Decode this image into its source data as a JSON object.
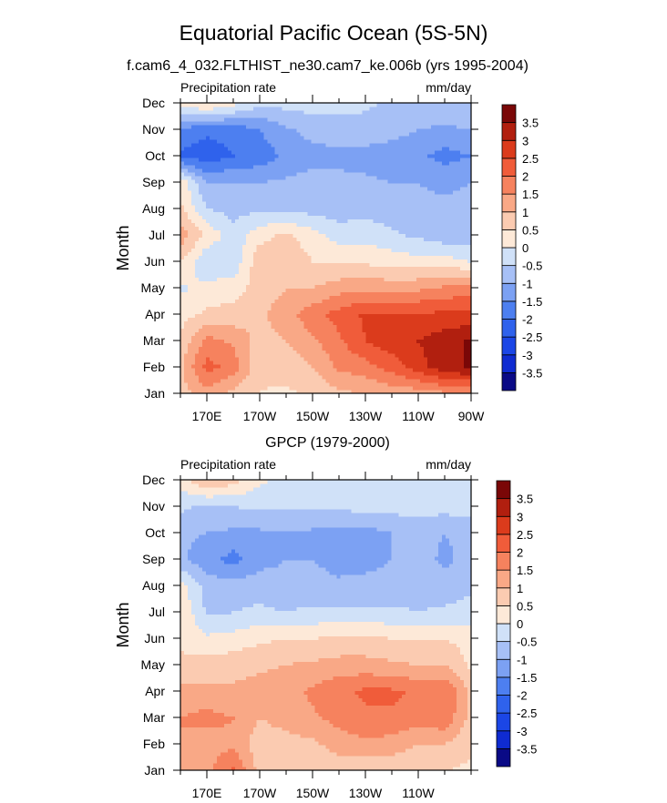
{
  "figure": {
    "title": "Equatorial Pacific Ocean (5S-5N)"
  },
  "colormap": [
    "#0a0a86",
    "#0f2bd1",
    "#1b46e6",
    "#2f62ec",
    "#4d7ff0",
    "#7ca1f3",
    "#a7c0f6",
    "#d0e1f8",
    "#fde9d8",
    "#fbcbb1",
    "#f9a886",
    "#f6825e",
    "#f05c3a",
    "#db3b1c",
    "#b11f0f",
    "#7a0707"
  ],
  "chart_data": [
    {
      "type": "heatmap",
      "title": "f.cam6_4_032.FLTHIST_ne30.cam7_ke.006b (yrs 1995-2004)",
      "left_label": "Precipitation rate",
      "right_label": "mm/day",
      "ylabel": "Month",
      "xlabel": "",
      "xlim": [
        160,
        270
      ],
      "ylim": [
        1,
        12
      ],
      "x_ticks": [
        {
          "value": 170,
          "label": "170E"
        },
        {
          "value": 190,
          "label": "170W"
        },
        {
          "value": 210,
          "label": "150W"
        },
        {
          "value": 230,
          "label": "130W"
        },
        {
          "value": 250,
          "label": "110W"
        },
        {
          "value": 270,
          "label": "90W"
        }
      ],
      "y_ticks": [
        "Jan",
        "Feb",
        "Mar",
        "Apr",
        "May",
        "Jun",
        "Jul",
        "Aug",
        "Sep",
        "Oct",
        "Nov",
        "Dec"
      ],
      "colorbar_labels": [
        "3.5",
        "3",
        "2.5",
        "2",
        "1.5",
        "1",
        "0.5",
        "0",
        "-0.5",
        "-1",
        "-1.5",
        "-2",
        "-2.5",
        "-3",
        "-3.5"
      ],
      "levels": [
        -3.5,
        -3,
        -2.5,
        -2,
        -1.5,
        -1,
        -0.5,
        0,
        0.5,
        1,
        1.5,
        2,
        2.5,
        3,
        3.5
      ],
      "grid_lon": [
        160,
        170,
        180,
        190,
        200,
        210,
        220,
        230,
        240,
        250,
        260,
        270
      ],
      "grid_month": [
        1,
        2,
        3,
        4,
        5,
        6,
        7,
        8,
        9,
        10,
        11,
        12
      ],
      "z": [
        [
          0.8,
          1.3,
          0.8,
          0.5,
          0.4,
          0.6,
          0.9,
          1.0,
          1.2,
          1.2,
          1.4,
          1.5
        ],
        [
          0.9,
          2.2,
          1.8,
          0.6,
          0.7,
          1.0,
          1.6,
          1.8,
          2.2,
          2.8,
          3.3,
          3.6
        ],
        [
          0.6,
          1.7,
          1.4,
          0.8,
          1.0,
          1.4,
          1.9,
          2.5,
          2.8,
          3.0,
          3.3,
          3.6
        ],
        [
          0.3,
          0.6,
          0.7,
          0.9,
          1.3,
          1.8,
          2.2,
          2.6,
          2.6,
          2.6,
          2.6,
          2.6
        ],
        [
          -0.1,
          0.2,
          0.3,
          0.7,
          1.0,
          1.0,
          1.3,
          1.4,
          1.3,
          1.4,
          1.6,
          1.8
        ],
        [
          0.5,
          -0.5,
          -0.4,
          0.9,
          0.9,
          0.5,
          0.4,
          0.4,
          0.3,
          0.2,
          0.2,
          0.0
        ],
        [
          1.3,
          0.4,
          -0.3,
          0.3,
          0.6,
          0.2,
          -0.2,
          -0.2,
          -0.4,
          -0.6,
          -0.8,
          -0.8
        ],
        [
          0.6,
          -0.5,
          -0.7,
          -0.6,
          -0.6,
          -0.7,
          -0.8,
          -0.7,
          -0.8,
          -0.9,
          -0.9,
          -0.8
        ],
        [
          0.4,
          -1.0,
          -1.0,
          -1.0,
          -0.9,
          -0.8,
          -0.9,
          -0.9,
          -1.0,
          -1.0,
          -1.1,
          -1.0
        ],
        [
          -2.1,
          -2.3,
          -2.0,
          -1.8,
          -1.4,
          -1.2,
          -1.1,
          -1.2,
          -1.3,
          -1.4,
          -1.7,
          -1.5
        ],
        [
          -1.6,
          -1.9,
          -1.8,
          -1.5,
          -1.1,
          -0.8,
          -0.8,
          -0.7,
          -0.8,
          -1.0,
          -1.1,
          -1.0
        ],
        [
          0.1,
          0.6,
          0.2,
          -0.4,
          -0.3,
          -0.3,
          -0.3,
          -0.4,
          -0.6,
          -0.5,
          -0.6,
          -0.5
        ]
      ]
    },
    {
      "type": "heatmap",
      "title": "GPCP (1979-2000)",
      "left_label": "Precipitation rate",
      "right_label": "mm/day",
      "ylabel": "Month",
      "xlabel": "",
      "xlim": [
        160,
        270
      ],
      "ylim": [
        1,
        12
      ],
      "x_ticks": [
        {
          "value": 170,
          "label": "170E"
        },
        {
          "value": 190,
          "label": "170W"
        },
        {
          "value": 210,
          "label": "150W"
        },
        {
          "value": 230,
          "label": "130W"
        },
        {
          "value": 250,
          "label": "110W"
        }
      ],
      "y_ticks": [
        "Jan",
        "Feb",
        "Mar",
        "Apr",
        "May",
        "Jun",
        "Jul",
        "Aug",
        "Sep",
        "Oct",
        "Nov",
        "Dec"
      ],
      "colorbar_labels": [
        "3.5",
        "3",
        "2.5",
        "2",
        "1.5",
        "1",
        "0.5",
        "0",
        "-0.5",
        "-1",
        "-1.5",
        "-2",
        "-2.5",
        "-3",
        "-3.5"
      ],
      "levels": [
        -3.5,
        -3,
        -2.5,
        -2,
        -1.5,
        -1,
        -0.5,
        0,
        0.5,
        1,
        1.5,
        2,
        2.5,
        3,
        3.5
      ],
      "grid_lon": [
        160,
        170,
        180,
        190,
        200,
        210,
        220,
        230,
        240,
        250,
        260,
        270
      ],
      "grid_month": [
        1,
        2,
        3,
        4,
        5,
        6,
        7,
        8,
        9,
        10,
        11,
        12
      ],
      "z": [
        [
          1.3,
          1.4,
          2.1,
          0.8,
          0.8,
          0.7,
          0.7,
          0.6,
          0.6,
          0.5,
          0.5,
          0.4
        ],
        [
          1.5,
          1.2,
          1.4,
          0.7,
          0.8,
          0.9,
          1.2,
          1.4,
          1.3,
          1.0,
          1.0,
          0.6
        ],
        [
          1.5,
          1.7,
          1.5,
          1.0,
          1.2,
          1.4,
          1.7,
          1.9,
          1.9,
          1.7,
          1.9,
          0.8
        ],
        [
          1.2,
          1.1,
          1.1,
          1.2,
          1.3,
          1.6,
          1.9,
          2.1,
          2.1,
          1.9,
          2.0,
          0.9
        ],
        [
          0.6,
          0.7,
          0.8,
          0.9,
          1.0,
          1.1,
          1.2,
          1.2,
          1.1,
          1.0,
          1.0,
          0.4
        ],
        [
          0.4,
          0.1,
          0.2,
          0.4,
          0.5,
          0.5,
          0.6,
          0.6,
          0.5,
          0.5,
          0.5,
          0.3
        ],
        [
          0.5,
          -0.6,
          -0.5,
          -0.4,
          -0.5,
          -0.4,
          -0.4,
          -0.4,
          -0.4,
          -0.5,
          -0.4,
          -0.3
        ],
        [
          0.2,
          -0.7,
          -0.8,
          -0.7,
          -0.8,
          -0.8,
          -0.9,
          -0.8,
          -0.8,
          -0.8,
          -0.8,
          -0.6
        ],
        [
          -0.9,
          -1.3,
          -1.7,
          -1.2,
          -1.0,
          -1.0,
          -1.2,
          -1.2,
          -1.0,
          -0.8,
          -1.1,
          -0.8
        ],
        [
          -0.9,
          -1.0,
          -1.1,
          -1.1,
          -1.0,
          -1.1,
          -1.2,
          -1.2,
          -1.0,
          -0.8,
          -1.0,
          -0.9
        ],
        [
          -0.4,
          -0.6,
          -0.5,
          -0.4,
          -0.4,
          -0.4,
          -0.4,
          -0.3,
          -0.3,
          -0.3,
          -0.3,
          -0.2
        ],
        [
          0.2,
          1.0,
          0.7,
          0.1,
          -0.1,
          -0.1,
          -0.2,
          -0.2,
          -0.2,
          -0.2,
          -0.2,
          -0.1
        ]
      ]
    }
  ]
}
